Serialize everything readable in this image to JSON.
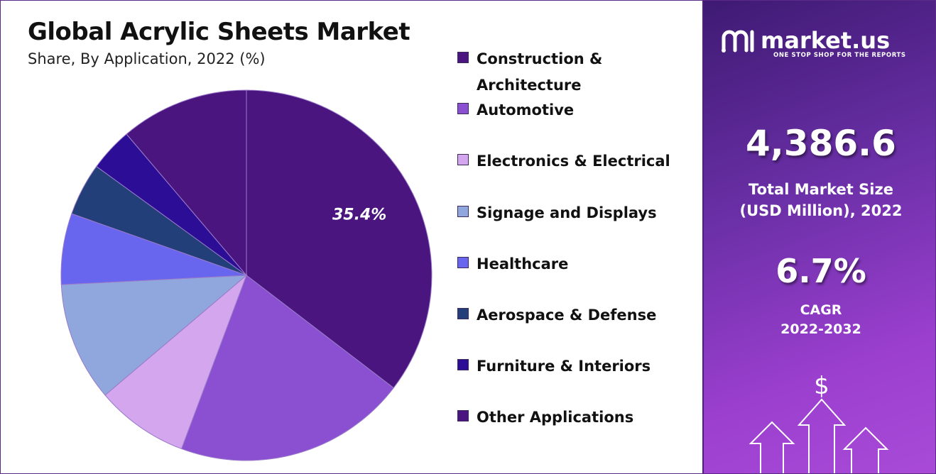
{
  "chart_data": {
    "type": "pie",
    "title": "Global Acrylic Sheets Market",
    "subtitle": "Share, By Application, 2022 (%)",
    "series": [
      {
        "name": "Construction & Architecture",
        "value": 35.4,
        "color": "#4b1580"
      },
      {
        "name": "Automotive",
        "value": 20.3,
        "color": "#8b4fd2"
      },
      {
        "name": "Electronics & Electrical",
        "value": 8.1,
        "color": "#d4a6ee"
      },
      {
        "name": "Signage and Displays",
        "value": 10.4,
        "color": "#8fa7dc"
      },
      {
        "name": "Healthcare",
        "value": 6.2,
        "color": "#6865ef"
      },
      {
        "name": "Aerospace & Defense",
        "value": 4.6,
        "color": "#223f7a"
      },
      {
        "name": "Furniture & Interiors",
        "value": 3.8,
        "color": "#2c0e96"
      },
      {
        "name": "Other Applications",
        "value": 11.2,
        "color": "#4b1580"
      }
    ],
    "data_labels": [
      {
        "series": "Construction & Architecture",
        "text": "35.4%"
      }
    ],
    "legend_position": "right"
  },
  "legend_labels": [
    [
      "Construction &",
      "Architecture"
    ],
    [
      "Automotive"
    ],
    [
      "Electronics & Electrical"
    ],
    [
      "Signage and Displays"
    ],
    [
      "Healthcare"
    ],
    [
      "Aerospace & Defense"
    ],
    [
      "Furniture & Interiors"
    ],
    [
      "Other Applications"
    ]
  ],
  "brand": {
    "name": "market.us",
    "tagline": "ONE STOP SHOP FOR THE REPORTS"
  },
  "stats": {
    "market_size": "4,386.6",
    "market_size_label_1": "Total Market Size",
    "market_size_label_2": "(USD Million), 2022",
    "cagr": "6.7%",
    "cagr_label_1": "CAGR",
    "cagr_label_2": "2022-2032"
  },
  "decor": {
    "dollar_symbol": "$"
  },
  "colors": {
    "panel_start": "#3e1a73",
    "panel_end": "#a94bd8"
  }
}
